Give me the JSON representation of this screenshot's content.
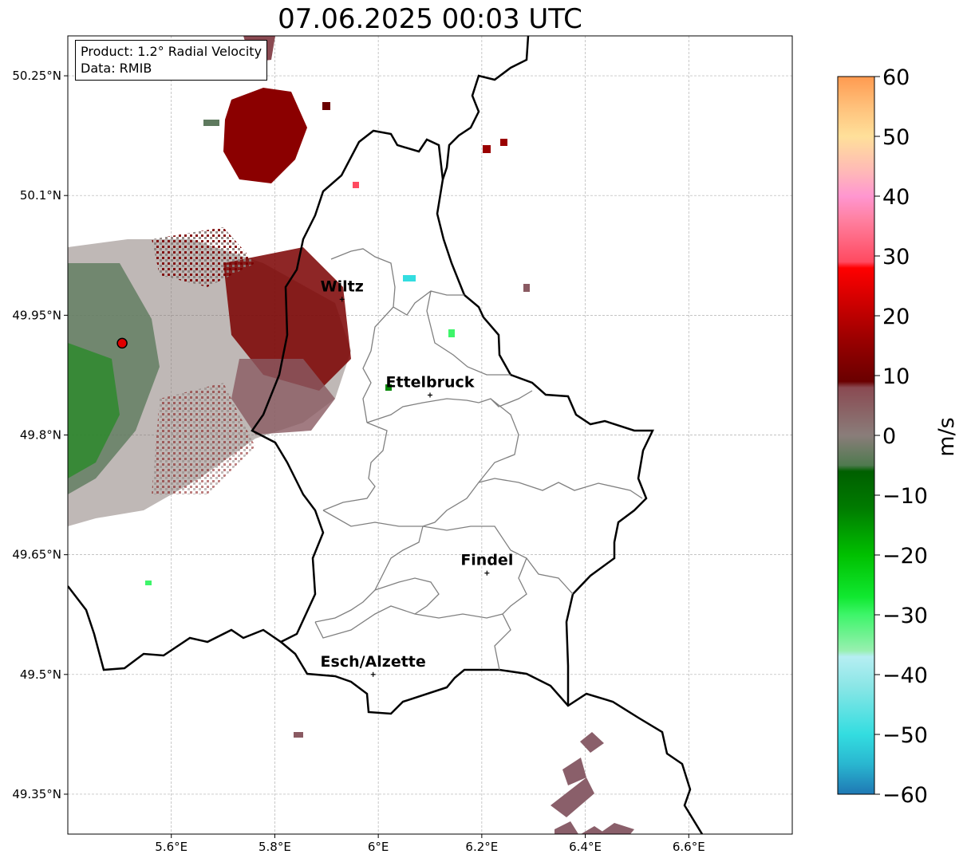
{
  "title": "07.06.2025 00:03 UTC",
  "info_box": {
    "product": "Product: 1.2° Radial Velocity",
    "data_source": "Data: RMIB"
  },
  "map": {
    "lon_range": [
      5.4,
      6.8
    ],
    "lat_range": [
      49.3,
      50.3
    ],
    "x_ticks": [
      {
        "value": 5.6,
        "label": "5.6°E"
      },
      {
        "value": 5.8,
        "label": "5.8°E"
      },
      {
        "value": 6.0,
        "label": "6°E"
      },
      {
        "value": 6.2,
        "label": "6.2°E"
      },
      {
        "value": 6.4,
        "label": "6.4°E"
      },
      {
        "value": 6.6,
        "label": "6.6°E"
      }
    ],
    "y_ticks": [
      {
        "value": 50.25,
        "label": "50.25°N"
      },
      {
        "value": 50.1,
        "label": "50.1°N"
      },
      {
        "value": 49.95,
        "label": "49.95°N"
      },
      {
        "value": 49.8,
        "label": "49.8°N"
      },
      {
        "value": 49.65,
        "label": "49.65°N"
      },
      {
        "value": 49.5,
        "label": "49.5°N"
      },
      {
        "value": 49.35,
        "label": "49.35°N"
      }
    ],
    "grid": true,
    "radar_site": {
      "lon": 5.505,
      "lat": 49.915,
      "color": "#e00000"
    },
    "cities": [
      {
        "name": "Wiltz",
        "lon": 5.93,
        "lat": 49.97
      },
      {
        "name": "Ettelbruck",
        "lon": 6.1,
        "lat": 49.85
      },
      {
        "name": "Findel",
        "lon": 6.21,
        "lat": 49.627
      },
      {
        "name": "Esch/Alzette",
        "lon": 5.99,
        "lat": 49.5
      }
    ]
  },
  "colorbar": {
    "label": "m/s",
    "min": -60,
    "max": 60,
    "ticks": [
      {
        "value": 60,
        "label": "60"
      },
      {
        "value": 50,
        "label": "50"
      },
      {
        "value": 40,
        "label": "40"
      },
      {
        "value": 30,
        "label": "30"
      },
      {
        "value": 20,
        "label": "20"
      },
      {
        "value": 10,
        "label": "10"
      },
      {
        "value": 0,
        "label": "0"
      },
      {
        "value": -10,
        "label": "−10"
      },
      {
        "value": -20,
        "label": "−20"
      },
      {
        "value": -30,
        "label": "−30"
      },
      {
        "value": -40,
        "label": "−40"
      },
      {
        "value": -50,
        "label": "−50"
      },
      {
        "value": -60,
        "label": "−60"
      }
    ],
    "stops": [
      {
        "v": -60,
        "color": "#1f78b4"
      },
      {
        "v": -55,
        "color": "#29b6d0"
      },
      {
        "v": -50,
        "color": "#33dde0"
      },
      {
        "v": -42,
        "color": "#8ae6e6"
      },
      {
        "v": -37,
        "color": "#b6eef2"
      },
      {
        "v": -36,
        "color": "#98f0b0"
      },
      {
        "v": -30,
        "color": "#3ef56a"
      },
      {
        "v": -27,
        "color": "#10e830"
      },
      {
        "v": -20,
        "color": "#00c000"
      },
      {
        "v": -12,
        "color": "#007a00"
      },
      {
        "v": -6,
        "color": "#005f00"
      },
      {
        "v": -5,
        "color": "#4f7a4f"
      },
      {
        "v": 0,
        "color": "#8a7d7a"
      },
      {
        "v": 8,
        "color": "#8a4a52"
      },
      {
        "v": 9,
        "color": "#6a0000"
      },
      {
        "v": 16,
        "color": "#9a0000"
      },
      {
        "v": 28,
        "color": "#ff0000"
      },
      {
        "v": 29,
        "color": "#ff4a60"
      },
      {
        "v": 36,
        "color": "#ff80a0"
      },
      {
        "v": 40,
        "color": "#ff96d0"
      },
      {
        "v": 44,
        "color": "#ffb8b8"
      },
      {
        "v": 50,
        "color": "#ffe09a"
      },
      {
        "v": 55,
        "color": "#ffc07a"
      },
      {
        "v": 60,
        "color": "#ff9a50"
      }
    ]
  }
}
